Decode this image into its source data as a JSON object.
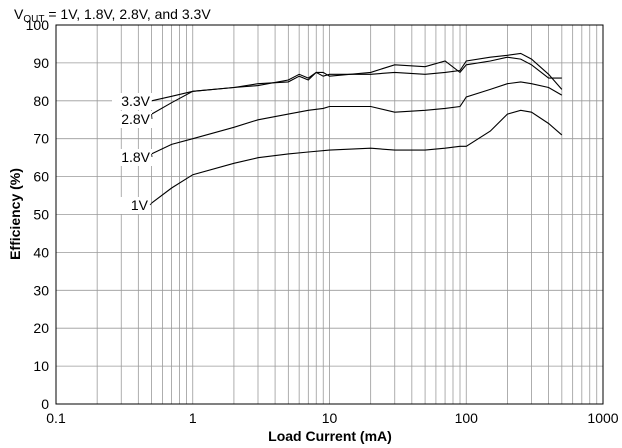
{
  "chart_data": {
    "type": "line",
    "title_prefix": "V",
    "title_sub": "OUT",
    "title_rest": " = 1V, 1.8V, 2.8V, and 3.3V",
    "xlabel": "Load Current (mA)",
    "ylabel": "Efficiency (%)",
    "x_scale": "log",
    "xlim": [
      0.1,
      1000
    ],
    "ylim": [
      0,
      100
    ],
    "grid": true,
    "x_ticks": [
      "0.1",
      "1",
      "10",
      "100",
      "1000"
    ],
    "y_ticks": [
      "0",
      "10",
      "20",
      "30",
      "40",
      "50",
      "60",
      "70",
      "80",
      "90",
      "100"
    ],
    "series": [
      {
        "name": "3.3V",
        "points": [
          [
            0.5,
            80
          ],
          [
            0.7,
            81.2
          ],
          [
            1,
            82.5
          ],
          [
            2,
            83.5
          ],
          [
            3,
            84.5
          ],
          [
            5,
            85
          ],
          [
            6,
            86.5
          ],
          [
            7,
            85.5
          ],
          [
            8,
            87.5
          ],
          [
            9,
            86.5
          ],
          [
            10,
            87
          ],
          [
            20,
            87
          ],
          [
            30,
            87.5
          ],
          [
            50,
            87
          ],
          [
            70,
            87.5
          ],
          [
            90,
            88
          ],
          [
            100,
            90.5
          ],
          [
            150,
            91.5
          ],
          [
            200,
            92
          ],
          [
            250,
            92.5
          ],
          [
            300,
            91
          ],
          [
            400,
            87
          ],
          [
            500,
            83
          ]
        ]
      },
      {
        "name": "2.8V",
        "points": [
          [
            0.5,
            76.5
          ],
          [
            0.7,
            79.5
          ],
          [
            1,
            82.5
          ],
          [
            2,
            83.5
          ],
          [
            3,
            84
          ],
          [
            5,
            85.5
          ],
          [
            6,
            87
          ],
          [
            7,
            86
          ],
          [
            8,
            87.5
          ],
          [
            9,
            87.5
          ],
          [
            10,
            86.5
          ],
          [
            20,
            87.5
          ],
          [
            30,
            89.5
          ],
          [
            50,
            89
          ],
          [
            70,
            90.5
          ],
          [
            90,
            87.5
          ],
          [
            100,
            89.5
          ],
          [
            150,
            90.5
          ],
          [
            200,
            91.5
          ],
          [
            250,
            91
          ],
          [
            300,
            89.5
          ],
          [
            400,
            86
          ],
          [
            500,
            86
          ]
        ]
      },
      {
        "name": "1.8V",
        "points": [
          [
            0.5,
            66
          ],
          [
            0.7,
            68.5
          ],
          [
            1,
            70
          ],
          [
            2,
            73
          ],
          [
            3,
            75
          ],
          [
            5,
            76.5
          ],
          [
            7,
            77.5
          ],
          [
            9,
            78
          ],
          [
            10,
            78.5
          ],
          [
            20,
            78.5
          ],
          [
            30,
            77
          ],
          [
            50,
            77.5
          ],
          [
            70,
            78
          ],
          [
            90,
            78.5
          ],
          [
            100,
            81
          ],
          [
            150,
            83
          ],
          [
            200,
            84.5
          ],
          [
            250,
            85
          ],
          [
            300,
            84.5
          ],
          [
            400,
            83.5
          ],
          [
            500,
            81.5
          ]
        ]
      },
      {
        "name": "1V",
        "points": [
          [
            0.5,
            53
          ],
          [
            0.7,
            57
          ],
          [
            1,
            60.5
          ],
          [
            2,
            63.5
          ],
          [
            3,
            65
          ],
          [
            5,
            66
          ],
          [
            7,
            66.5
          ],
          [
            10,
            67
          ],
          [
            20,
            67.5
          ],
          [
            30,
            67
          ],
          [
            50,
            67
          ],
          [
            70,
            67.5
          ],
          [
            90,
            68
          ],
          [
            100,
            68
          ],
          [
            150,
            72
          ],
          [
            200,
            76.5
          ],
          [
            250,
            77.5
          ],
          [
            300,
            77
          ],
          [
            400,
            74
          ],
          [
            500,
            71
          ]
        ]
      }
    ],
    "series_labels": [
      "3.3V",
      "2.8V",
      "1.8V",
      "1V"
    ]
  }
}
